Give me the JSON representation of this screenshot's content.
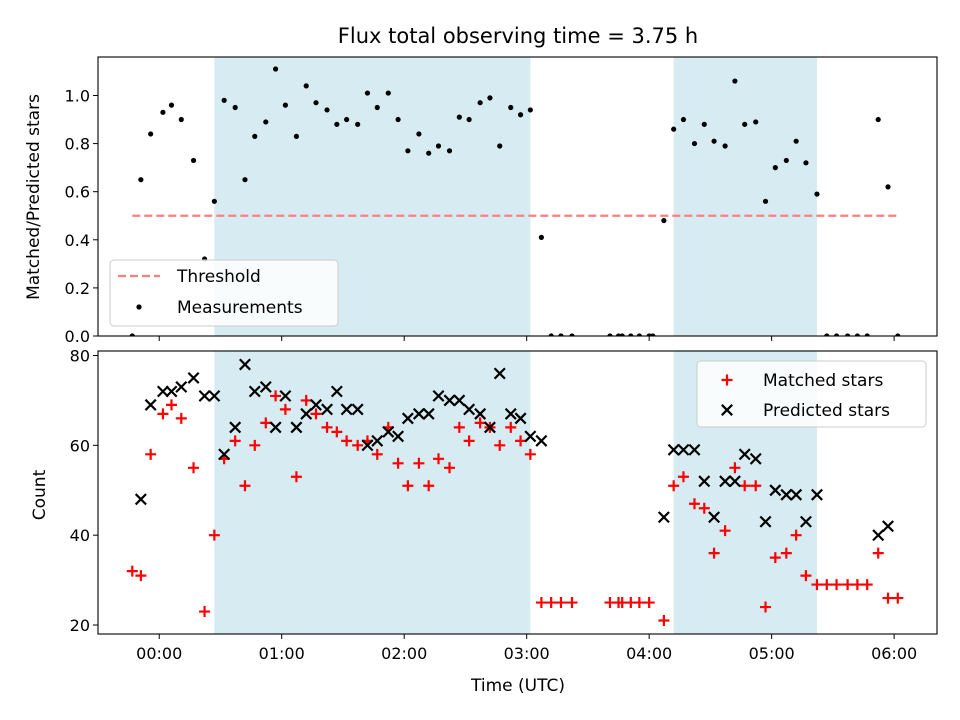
{
  "chart_data": [
    {
      "type": "scatter",
      "title": "Flux total observing time = 3.75 h",
      "xlabel": "",
      "ylabel": "Matched/Predicted stars",
      "xlim": [
        -0.5,
        6.35
      ],
      "ylim": [
        0,
        1.16
      ],
      "yticks": [
        0.0,
        0.2,
        0.4,
        0.6,
        0.8,
        1.0
      ],
      "ytick_labels": [
        "0.0",
        "0.2",
        "0.4",
        "0.6",
        "0.8",
        "1.0"
      ],
      "xticks": [
        0,
        1,
        2,
        3,
        4,
        5,
        6
      ],
      "grid": false,
      "shaded_regions": [
        [
          0.45,
          3.03
        ],
        [
          4.2,
          5.37
        ]
      ],
      "shade_color": "#add8e6",
      "legend": {
        "position": "lower-left",
        "entries": [
          "Threshold",
          "Measurements"
        ]
      },
      "threshold": {
        "name": "Threshold",
        "value": 0.5,
        "x_range": [
          -0.22,
          6.02
        ],
        "color": "#ff7f7f"
      },
      "series": [
        {
          "name": "Measurements",
          "marker": "dot",
          "color": "#000000",
          "x": [
            -0.22,
            -0.15,
            -0.07,
            0.03,
            0.1,
            0.18,
            0.28,
            0.37,
            0.45,
            0.53,
            0.62,
            0.7,
            0.78,
            0.87,
            0.95,
            1.03,
            1.12,
            1.2,
            1.28,
            1.37,
            1.45,
            1.53,
            1.62,
            1.7,
            1.78,
            1.87,
            1.95,
            2.03,
            2.12,
            2.2,
            2.28,
            2.37,
            2.45,
            2.53,
            2.62,
            2.7,
            2.78,
            2.87,
            2.95,
            3.03,
            3.12,
            3.2,
            3.28,
            3.37,
            3.68,
            3.75,
            3.78,
            3.85,
            3.92,
            4.0,
            4.03,
            4.12,
            4.2,
            4.28,
            4.37,
            4.45,
            4.53,
            4.62,
            4.7,
            4.78,
            4.87,
            4.95,
            5.03,
            5.12,
            5.2,
            5.28,
            5.37,
            5.45,
            5.53,
            5.62,
            5.7,
            5.78,
            5.87,
            5.95,
            6.03
          ],
          "y": [
            0.0,
            0.65,
            0.84,
            0.93,
            0.96,
            0.9,
            0.73,
            0.32,
            0.56,
            0.98,
            0.95,
            0.65,
            0.83,
            0.89,
            1.11,
            0.96,
            0.83,
            1.04,
            0.97,
            0.94,
            0.88,
            0.9,
            0.88,
            1.01,
            0.95,
            1.01,
            0.9,
            0.77,
            0.84,
            0.76,
            0.79,
            0.77,
            0.91,
            0.9,
            0.97,
            0.99,
            0.79,
            0.95,
            0.92,
            0.94,
            0.41,
            0.0,
            0.0,
            0.0,
            0.0,
            0.0,
            0.0,
            0.0,
            0.0,
            0.0,
            0.0,
            0.48,
            0.86,
            0.9,
            0.8,
            0.88,
            0.81,
            0.79,
            1.06,
            0.88,
            0.89,
            0.56,
            0.7,
            0.73,
            0.81,
            0.72,
            0.59,
            0.0,
            0.0,
            0.0,
            0.0,
            0.0,
            0.9,
            0.62,
            0.0
          ]
        }
      ]
    },
    {
      "type": "scatter",
      "title": "",
      "xlabel": "Time (UTC)",
      "ylabel": "Count",
      "xlim": [
        -0.5,
        6.35
      ],
      "ylim": [
        18,
        81
      ],
      "yticks": [
        20,
        40,
        60,
        80
      ],
      "ytick_labels": [
        "20",
        "40",
        "60",
        "80"
      ],
      "xticks": [
        0,
        1,
        2,
        3,
        4,
        5,
        6
      ],
      "xtick_labels": [
        "00:00",
        "01:00",
        "02:00",
        "03:00",
        "04:00",
        "05:00",
        "06:00"
      ],
      "grid": false,
      "shaded_regions": [
        [
          0.45,
          3.03
        ],
        [
          4.2,
          5.37
        ]
      ],
      "shade_color": "#add8e6",
      "legend": {
        "position": "top-right",
        "entries": [
          "Matched stars",
          "Predicted stars"
        ]
      },
      "series": [
        {
          "name": "Matched stars",
          "marker": "plus",
          "color": "#ff0000",
          "x": [
            -0.22,
            -0.15,
            -0.07,
            0.03,
            0.1,
            0.18,
            0.28,
            0.37,
            0.45,
            0.53,
            0.62,
            0.7,
            0.78,
            0.87,
            0.95,
            1.03,
            1.12,
            1.2,
            1.28,
            1.37,
            1.45,
            1.53,
            1.62,
            1.7,
            1.78,
            1.87,
            1.95,
            2.03,
            2.12,
            2.2,
            2.28,
            2.37,
            2.45,
            2.53,
            2.62,
            2.7,
            2.78,
            2.87,
            2.95,
            3.03,
            3.12,
            3.2,
            3.28,
            3.37,
            3.68,
            3.75,
            3.78,
            3.85,
            3.92,
            4.0,
            4.12,
            4.2,
            4.28,
            4.37,
            4.45,
            4.53,
            4.62,
            4.7,
            4.78,
            4.87,
            4.95,
            5.03,
            5.12,
            5.2,
            5.28,
            5.37,
            5.45,
            5.53,
            5.62,
            5.7,
            5.78,
            5.87,
            5.95,
            6.03
          ],
          "y": [
            32,
            31,
            58,
            67,
            69,
            66,
            55,
            23,
            40,
            57,
            61,
            51,
            60,
            65,
            71,
            68,
            53,
            70,
            67,
            64,
            63,
            61,
            60,
            61,
            58,
            64,
            56,
            51,
            56,
            51,
            57,
            55,
            64,
            61,
            65,
            64,
            60,
            64,
            61,
            58,
            25,
            25,
            25,
            25,
            25,
            25,
            25,
            25,
            25,
            25,
            21,
            51,
            53,
            47,
            46,
            36,
            41,
            55,
            51,
            51,
            24,
            35,
            36,
            40,
            31,
            29,
            29,
            29,
            29,
            29,
            29,
            36,
            26,
            26
          ]
        },
        {
          "name": "Predicted stars",
          "marker": "x",
          "color": "#000000",
          "x": [
            -0.15,
            -0.07,
            0.03,
            0.1,
            0.18,
            0.28,
            0.37,
            0.45,
            0.53,
            0.62,
            0.7,
            0.78,
            0.87,
            0.95,
            1.03,
            1.12,
            1.2,
            1.28,
            1.37,
            1.45,
            1.53,
            1.62,
            1.7,
            1.78,
            1.87,
            1.95,
            2.03,
            2.12,
            2.2,
            2.28,
            2.37,
            2.45,
            2.53,
            2.62,
            2.7,
            2.78,
            2.87,
            2.95,
            3.03,
            3.12,
            4.12,
            4.2,
            4.28,
            4.37,
            4.45,
            4.53,
            4.62,
            4.7,
            4.78,
            4.87,
            4.95,
            5.03,
            5.12,
            5.2,
            5.28,
            5.37,
            5.87,
            5.95
          ],
          "y": [
            48,
            69,
            72,
            72,
            73,
            75,
            71,
            71,
            58,
            64,
            78,
            72,
            73,
            64,
            71,
            64,
            67,
            69,
            68,
            72,
            68,
            68,
            60,
            61,
            63,
            62,
            66,
            67,
            67,
            71,
            70,
            70,
            68,
            67,
            64,
            76,
            67,
            66,
            62,
            61,
            44,
            59,
            59,
            59,
            52,
            44,
            52,
            52,
            58,
            57,
            43,
            50,
            49,
            49,
            43,
            49,
            40,
            42
          ]
        }
      ]
    }
  ]
}
